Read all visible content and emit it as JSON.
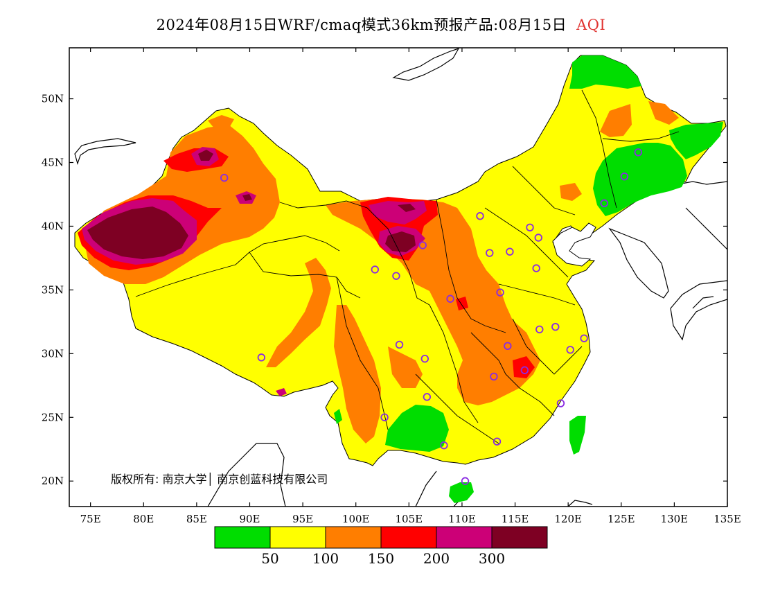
{
  "title": {
    "main": "2024年08月15日WRF/cmaq模式36km预报产品:08月15日",
    "product": "AQI"
  },
  "axes": {
    "x_ticks": [
      "75E",
      "80E",
      "85E",
      "90E",
      "95E",
      "100E",
      "105E",
      "110E",
      "115E",
      "120E",
      "125E",
      "130E",
      "135E"
    ],
    "y_ticks": [
      "20N",
      "25N",
      "30N",
      "35N",
      "40N",
      "45N",
      "50N"
    ],
    "lon_range": [
      73,
      135
    ],
    "lat_range": [
      18,
      54
    ]
  },
  "copyright": "版权所有: 南京大学│ 南京创蓝科技有限公司",
  "legend": {
    "colors": [
      "#00dd00",
      "#ffff00",
      "#ff7e00",
      "#ff0000",
      "#cc0077",
      "#7e0023"
    ],
    "labels": [
      "50",
      "100",
      "150",
      "200",
      "300"
    ]
  },
  "colors": {
    "good": "#00dd00",
    "moderate": "#ffff00",
    "sensitive": "#ff7e00",
    "unhealthy": "#ff0000",
    "very_unhealthy": "#cc0077",
    "hazardous": "#7e0023",
    "station_marker": "#8a2be2",
    "title_accent": "#e0322f"
  },
  "stations": [
    {
      "lon": 87.6,
      "lat": 43.8
    },
    {
      "lon": 101.8,
      "lat": 36.6
    },
    {
      "lon": 103.8,
      "lat": 36.1
    },
    {
      "lon": 106.3,
      "lat": 38.5
    },
    {
      "lon": 111.7,
      "lat": 40.8
    },
    {
      "lon": 112.6,
      "lat": 37.9
    },
    {
      "lon": 114.5,
      "lat": 38.0
    },
    {
      "lon": 116.4,
      "lat": 39.9
    },
    {
      "lon": 117.2,
      "lat": 39.1
    },
    {
      "lon": 117.0,
      "lat": 36.7
    },
    {
      "lon": 113.6,
      "lat": 34.8
    },
    {
      "lon": 108.9,
      "lat": 34.3
    },
    {
      "lon": 104.1,
      "lat": 30.7
    },
    {
      "lon": 106.5,
      "lat": 29.6
    },
    {
      "lon": 114.3,
      "lat": 30.6
    },
    {
      "lon": 117.3,
      "lat": 31.9
    },
    {
      "lon": 118.8,
      "lat": 32.1
    },
    {
      "lon": 120.2,
      "lat": 30.3
    },
    {
      "lon": 121.5,
      "lat": 31.2
    },
    {
      "lon": 115.9,
      "lat": 28.7
    },
    {
      "lon": 113.0,
      "lat": 28.2
    },
    {
      "lon": 106.7,
      "lat": 26.6
    },
    {
      "lon": 102.7,
      "lat": 25.0
    },
    {
      "lon": 119.3,
      "lat": 26.1
    },
    {
      "lon": 113.3,
      "lat": 23.1
    },
    {
      "lon": 108.3,
      "lat": 22.8
    },
    {
      "lon": 110.3,
      "lat": 20.0
    },
    {
      "lon": 91.1,
      "lat": 29.7
    },
    {
      "lon": 123.4,
      "lat": 41.8
    },
    {
      "lon": 125.3,
      "lat": 43.9
    },
    {
      "lon": 126.6,
      "lat": 45.8
    }
  ]
}
